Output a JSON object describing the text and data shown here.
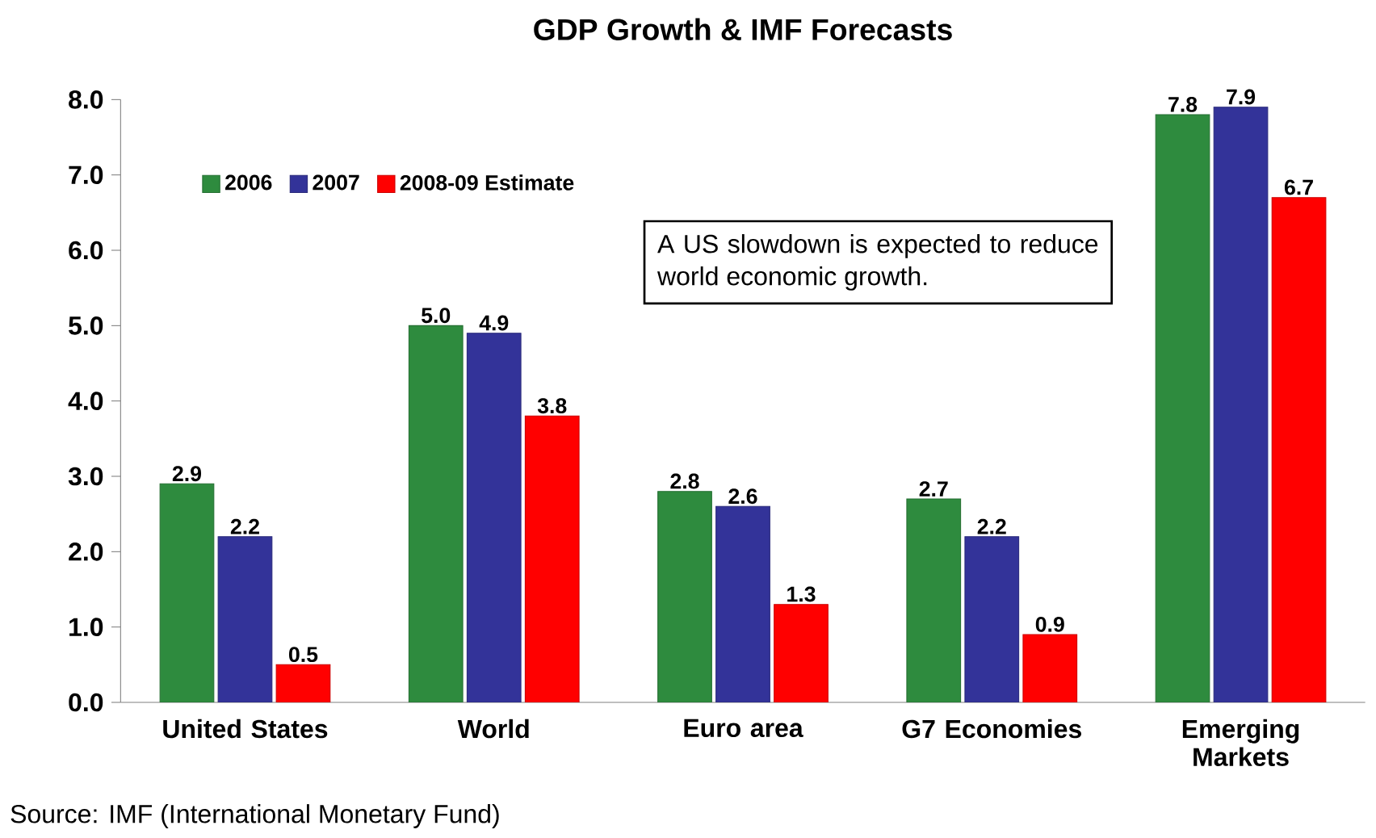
{
  "chart_data": {
    "type": "bar",
    "title": "GDP Growth & IMF Forecasts",
    "categories": [
      "United States",
      "World",
      "Euro area",
      "G7 Economies",
      "Emerging Markets"
    ],
    "series": [
      {
        "name": "2006",
        "color": "#2e8b3e",
        "values": [
          2.9,
          5.0,
          2.8,
          2.7,
          7.8
        ],
        "value_labels": [
          "2.9",
          "5.0",
          "2.8",
          "2.7",
          "7.8"
        ]
      },
      {
        "name": "2007",
        "color": "#333399",
        "values": [
          2.2,
          4.9,
          2.6,
          2.2,
          7.9
        ],
        "value_labels": [
          "2.2",
          "4.9",
          "2.6",
          "2.2",
          "7.9"
        ]
      },
      {
        "name": "2008-09 Estimate",
        "color": "#ff0000",
        "values": [
          0.5,
          3.8,
          1.3,
          0.9,
          6.7
        ],
        "value_labels": [
          "0.5",
          "3.8",
          "1.3",
          "0.9",
          "6.7"
        ]
      }
    ],
    "ylim": [
      0,
      8
    ],
    "yticks": [
      {
        "value": 0,
        "label": "0.0"
      },
      {
        "value": 1,
        "label": "1.0"
      },
      {
        "value": 2,
        "label": "2.0"
      },
      {
        "value": 3,
        "label": "3.0"
      },
      {
        "value": 4,
        "label": "4.0"
      },
      {
        "value": 5,
        "label": "5.0"
      },
      {
        "value": 6,
        "label": "6.0"
      },
      {
        "value": 7,
        "label": "7.0"
      },
      {
        "value": 8,
        "label": "8.0"
      }
    ],
    "legend": "top left",
    "annotations": [
      "A US slowdown is expected to reduce world economic growth.",
      "Source: IMF (International Monetary Fund)"
    ]
  }
}
